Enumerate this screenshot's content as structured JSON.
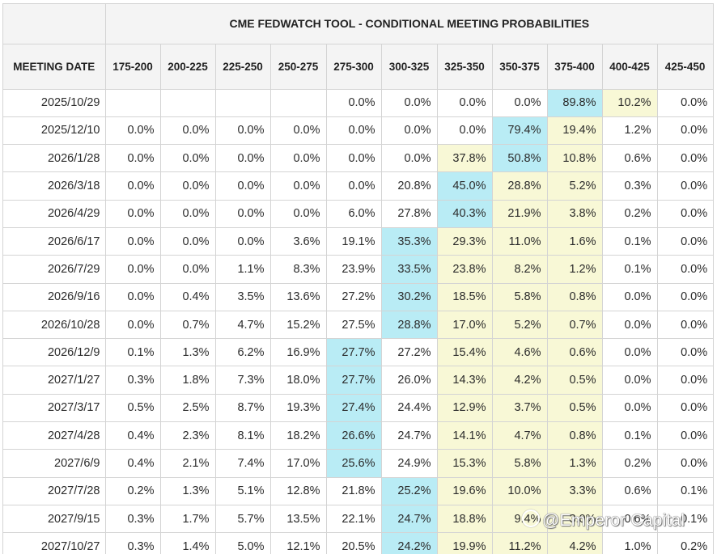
{
  "title": "CME FEDWATCH TOOL - CONDITIONAL MEETING PROBABILITIES",
  "header_label": "MEETING DATE",
  "columns": [
    "175-200",
    "200-225",
    "225-250",
    "250-275",
    "275-300",
    "300-325",
    "325-350",
    "350-375",
    "375-400",
    "400-425",
    "425-450"
  ],
  "rows": [
    {
      "date": "2025/10/29",
      "values": [
        "",
        "",
        "",
        "",
        "0.0%",
        "0.0%",
        "0.0%",
        "0.0%",
        "89.8%",
        "10.2%",
        "0.0%"
      ]
    },
    {
      "date": "2025/12/10",
      "values": [
        "0.0%",
        "0.0%",
        "0.0%",
        "0.0%",
        "0.0%",
        "0.0%",
        "0.0%",
        "79.4%",
        "19.4%",
        "1.2%",
        "0.0%"
      ]
    },
    {
      "date": "2026/1/28",
      "values": [
        "0.0%",
        "0.0%",
        "0.0%",
        "0.0%",
        "0.0%",
        "0.0%",
        "37.8%",
        "50.8%",
        "10.8%",
        "0.6%",
        "0.0%"
      ]
    },
    {
      "date": "2026/3/18",
      "values": [
        "0.0%",
        "0.0%",
        "0.0%",
        "0.0%",
        "0.0%",
        "20.8%",
        "45.0%",
        "28.8%",
        "5.2%",
        "0.3%",
        "0.0%"
      ]
    },
    {
      "date": "2026/4/29",
      "values": [
        "0.0%",
        "0.0%",
        "0.0%",
        "0.0%",
        "6.0%",
        "27.8%",
        "40.3%",
        "21.9%",
        "3.8%",
        "0.2%",
        "0.0%"
      ]
    },
    {
      "date": "2026/6/17",
      "values": [
        "0.0%",
        "0.0%",
        "0.0%",
        "3.6%",
        "19.1%",
        "35.3%",
        "29.3%",
        "11.0%",
        "1.6%",
        "0.1%",
        "0.0%"
      ]
    },
    {
      "date": "2026/7/29",
      "values": [
        "0.0%",
        "0.0%",
        "1.1%",
        "8.3%",
        "23.9%",
        "33.5%",
        "23.8%",
        "8.2%",
        "1.2%",
        "0.1%",
        "0.0%"
      ]
    },
    {
      "date": "2026/9/16",
      "values": [
        "0.0%",
        "0.4%",
        "3.5%",
        "13.6%",
        "27.2%",
        "30.2%",
        "18.5%",
        "5.8%",
        "0.8%",
        "0.0%",
        "0.0%"
      ]
    },
    {
      "date": "2026/10/28",
      "values": [
        "0.0%",
        "0.7%",
        "4.7%",
        "15.2%",
        "27.5%",
        "28.8%",
        "17.0%",
        "5.2%",
        "0.7%",
        "0.0%",
        "0.0%"
      ]
    },
    {
      "date": "2026/12/9",
      "values": [
        "0.1%",
        "1.3%",
        "6.2%",
        "16.9%",
        "27.7%",
        "27.2%",
        "15.4%",
        "4.6%",
        "0.6%",
        "0.0%",
        "0.0%"
      ]
    },
    {
      "date": "2027/1/27",
      "values": [
        "0.3%",
        "1.8%",
        "7.3%",
        "18.0%",
        "27.7%",
        "26.0%",
        "14.3%",
        "4.2%",
        "0.5%",
        "0.0%",
        "0.0%"
      ]
    },
    {
      "date": "2027/3/17",
      "values": [
        "0.5%",
        "2.5%",
        "8.7%",
        "19.3%",
        "27.4%",
        "24.4%",
        "12.9%",
        "3.7%",
        "0.5%",
        "0.0%",
        "0.0%"
      ]
    },
    {
      "date": "2027/4/28",
      "values": [
        "0.4%",
        "2.3%",
        "8.1%",
        "18.2%",
        "26.6%",
        "24.7%",
        "14.1%",
        "4.7%",
        "0.8%",
        "0.1%",
        "0.0%"
      ]
    },
    {
      "date": "2027/6/9",
      "values": [
        "0.4%",
        "2.1%",
        "7.4%",
        "17.0%",
        "25.6%",
        "24.9%",
        "15.3%",
        "5.8%",
        "1.3%",
        "0.2%",
        "0.0%"
      ]
    },
    {
      "date": "2027/7/28",
      "values": [
        "0.2%",
        "1.3%",
        "5.1%",
        "12.8%",
        "21.8%",
        "25.2%",
        "19.6%",
        "10.0%",
        "3.3%",
        "0.6%",
        "0.1%"
      ]
    },
    {
      "date": "2027/9/15",
      "values": [
        "0.3%",
        "1.7%",
        "5.7%",
        "13.5%",
        "22.1%",
        "24.7%",
        "18.8%",
        "9.4%",
        "3.0%",
        "0.6%",
        "0.1%"
      ]
    },
    {
      "date": "2027/10/27",
      "values": [
        "0.3%",
        "1.4%",
        "5.0%",
        "12.1%",
        "20.5%",
        "24.2%",
        "19.9%",
        "11.2%",
        "4.2%",
        "1.0%",
        "0.2%"
      ]
    }
  ],
  "highlight_ranges": [
    [
      8,
      9
    ],
    [
      7,
      8
    ],
    [
      6,
      8
    ],
    [
      6,
      8
    ],
    [
      6,
      8
    ],
    [
      6,
      8
    ],
    [
      6,
      8
    ],
    [
      6,
      8
    ],
    [
      6,
      8
    ],
    [
      6,
      8
    ],
    [
      6,
      8
    ],
    [
      6,
      8
    ],
    [
      6,
      8
    ],
    [
      6,
      8
    ],
    [
      6,
      8
    ],
    [
      6,
      8
    ],
    [
      6,
      8
    ]
  ],
  "max_cells": [
    8,
    7,
    7,
    6,
    6,
    5,
    5,
    5,
    5,
    4,
    4,
    4,
    4,
    4,
    5,
    5,
    5
  ],
  "colors": {
    "max": "#b9ecf5",
    "highlight": "#f8f8d6",
    "header_bg": "#f4f4f4",
    "grid": "#d4d4d4"
  },
  "watermark": "@Emperor Capital"
}
